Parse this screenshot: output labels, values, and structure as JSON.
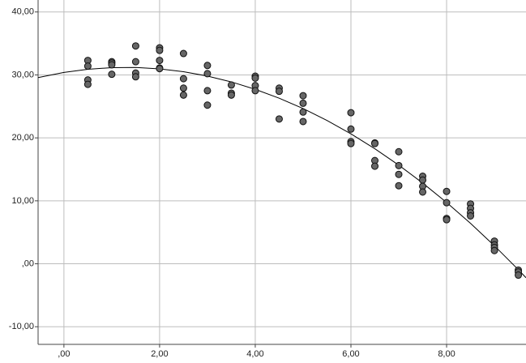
{
  "chart_data": {
    "type": "scatter",
    "x": [
      0.5,
      0.5,
      0.5,
      0.5,
      1,
      1,
      1,
      1,
      1.5,
      1.5,
      1.5,
      1.5,
      2,
      2,
      2,
      2,
      2,
      2.5,
      2.5,
      2.5,
      2.5,
      3,
      3,
      3,
      3,
      3.5,
      3.5,
      3.5,
      4,
      4,
      4,
      4,
      4.5,
      4.5,
      4.5,
      5,
      5,
      5,
      5,
      6,
      6,
      6,
      6,
      6.5,
      6.5,
      6.5,
      6.5,
      7,
      7,
      7,
      7,
      7.5,
      7.5,
      7.5,
      7.5,
      8,
      8,
      8,
      8,
      8.5,
      8.5,
      8.5,
      8.5,
      9,
      9,
      9,
      9,
      9.5,
      9.5,
      9.5
    ],
    "y": [
      32.3,
      31.4,
      29.2,
      28.5,
      32.1,
      31.9,
      31.6,
      30.1,
      34.6,
      32.1,
      30.3,
      29.7,
      34.3,
      33.9,
      32.3,
      31.1,
      31.0,
      33.4,
      29.4,
      27.9,
      26.8,
      31.5,
      30.2,
      27.5,
      25.2,
      28.4,
      27.1,
      26.8,
      29.8,
      29.5,
      28.3,
      27.5,
      27.9,
      27.4,
      23.0,
      26.7,
      25.5,
      24.1,
      22.6,
      24.0,
      21.4,
      19.4,
      19.1,
      19.2,
      19.1,
      16.4,
      15.5,
      17.8,
      15.6,
      14.2,
      12.4,
      13.9,
      13.3,
      12.3,
      11.4,
      11.5,
      9.7,
      7.2,
      7.0,
      9.5,
      8.8,
      8.1,
      7.6,
      3.6,
      3.0,
      2.6,
      2.1,
      -1.0,
      -1.3,
      -1.8
    ],
    "color": "#666666",
    "fit_line": {
      "x": [
        -0.54,
        0,
        0.5,
        1,
        1.5,
        2,
        2.5,
        3,
        3.5,
        4,
        4.5,
        5,
        5.5,
        6,
        6.5,
        7,
        7.5,
        8,
        8.5,
        9,
        9.5,
        9.66
      ],
      "y": [
        29.58,
        30.39,
        30.89,
        31.16,
        31.18,
        30.96,
        30.51,
        29.82,
        28.89,
        27.71,
        26.3,
        24.66,
        22.77,
        20.64,
        18.27,
        15.67,
        12.82,
        9.74,
        6.42,
        2.86,
        -0.94,
        -2.21
      ]
    },
    "xlim": [
      -0.54,
      9.66
    ],
    "ylim": [
      -12.8,
      41.9
    ],
    "xticks": [
      {
        "value": 0,
        "label": ",00"
      },
      {
        "value": 2,
        "label": "2,00"
      },
      {
        "value": 4,
        "label": "4,00"
      },
      {
        "value": 6,
        "label": "6,00"
      },
      {
        "value": 8,
        "label": "8,00"
      }
    ],
    "yticks": [
      {
        "value": -10,
        "label": "-10,00"
      },
      {
        "value": 0,
        "label": ",00"
      },
      {
        "value": 10,
        "label": "10,00"
      },
      {
        "value": 20,
        "label": "20,00"
      },
      {
        "value": 30,
        "label": "30,00"
      },
      {
        "value": 40,
        "label": "40,00"
      }
    ],
    "grid": true
  }
}
